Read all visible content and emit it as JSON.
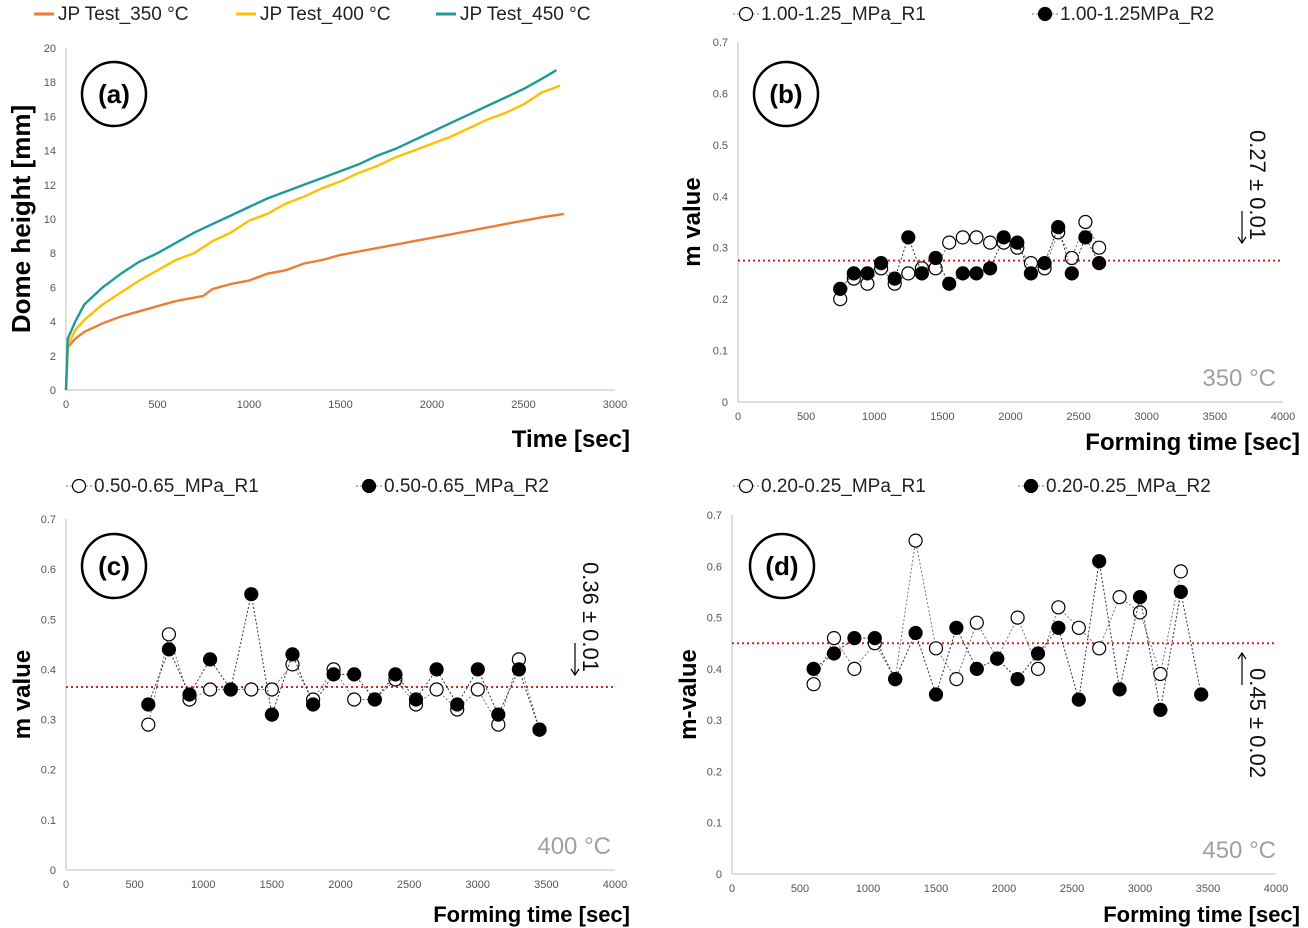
{
  "chart_data": [
    {
      "id": "a",
      "type": "line",
      "panel_label": "(a)",
      "xlabel": "Time [sec]",
      "ylabel": "Dome height [mm]",
      "xlim": [
        0,
        3000
      ],
      "ylim": [
        0,
        20
      ],
      "xticks": [
        0,
        500,
        1000,
        1500,
        2000,
        2500,
        3000
      ],
      "yticks": [
        0,
        2,
        4,
        6,
        8,
        10,
        12,
        14,
        16,
        18,
        20
      ],
      "legend_position": "top",
      "series": [
        {
          "name": "JP Test_350 °C",
          "color": "#ed7d31",
          "points": [
            [
              0,
              0
            ],
            [
              10,
              2.5
            ],
            [
              50,
              3.0
            ],
            [
              100,
              3.4
            ],
            [
              200,
              3.9
            ],
            [
              300,
              4.3
            ],
            [
              400,
              4.6
            ],
            [
              500,
              4.9
            ],
            [
              600,
              5.2
            ],
            [
              750,
              5.5
            ],
            [
              800,
              5.9
            ],
            [
              900,
              6.2
            ],
            [
              1000,
              6.4
            ],
            [
              1100,
              6.8
            ],
            [
              1200,
              7.0
            ],
            [
              1300,
              7.4
            ],
            [
              1400,
              7.6
            ],
            [
              1500,
              7.9
            ],
            [
              1600,
              8.1
            ],
            [
              1700,
              8.3
            ],
            [
              1800,
              8.5
            ],
            [
              1900,
              8.7
            ],
            [
              2000,
              8.9
            ],
            [
              2100,
              9.1
            ],
            [
              2200,
              9.3
            ],
            [
              2300,
              9.5
            ],
            [
              2400,
              9.7
            ],
            [
              2500,
              9.9
            ],
            [
              2600,
              10.1
            ],
            [
              2720,
              10.3
            ]
          ]
        },
        {
          "name": "JP Test_400 °C",
          "color": "#ffc000",
          "points": [
            [
              0,
              0
            ],
            [
              10,
              2.6
            ],
            [
              50,
              3.5
            ],
            [
              100,
              4.1
            ],
            [
              200,
              5.0
            ],
            [
              300,
              5.7
            ],
            [
              400,
              6.4
            ],
            [
              500,
              7.0
            ],
            [
              600,
              7.6
            ],
            [
              700,
              8.0
            ],
            [
              800,
              8.7
            ],
            [
              900,
              9.2
            ],
            [
              1000,
              9.9
            ],
            [
              1100,
              10.3
            ],
            [
              1200,
              10.9
            ],
            [
              1300,
              11.3
            ],
            [
              1400,
              11.8
            ],
            [
              1500,
              12.2
            ],
            [
              1600,
              12.7
            ],
            [
              1700,
              13.1
            ],
            [
              1800,
              13.6
            ],
            [
              1900,
              14.0
            ],
            [
              2000,
              14.4
            ],
            [
              2100,
              14.8
            ],
            [
              2200,
              15.3
            ],
            [
              2300,
              15.8
            ],
            [
              2400,
              16.2
            ],
            [
              2500,
              16.7
            ],
            [
              2600,
              17.4
            ],
            [
              2700,
              17.8
            ]
          ]
        },
        {
          "name": "JP Test_450 °C",
          "color": "#1f9a9a",
          "points": [
            [
              0,
              0
            ],
            [
              10,
              3.0
            ],
            [
              50,
              4.0
            ],
            [
              100,
              5.0
            ],
            [
              200,
              6.0
            ],
            [
              300,
              6.8
            ],
            [
              400,
              7.5
            ],
            [
              500,
              8.0
            ],
            [
              600,
              8.6
            ],
            [
              700,
              9.2
            ],
            [
              800,
              9.7
            ],
            [
              900,
              10.2
            ],
            [
              1000,
              10.7
            ],
            [
              1100,
              11.2
            ],
            [
              1200,
              11.6
            ],
            [
              1300,
              12.0
            ],
            [
              1400,
              12.4
            ],
            [
              1500,
              12.8
            ],
            [
              1600,
              13.2
            ],
            [
              1700,
              13.7
            ],
            [
              1800,
              14.1
            ],
            [
              1900,
              14.6
            ],
            [
              2000,
              15.1
            ],
            [
              2100,
              15.6
            ],
            [
              2200,
              16.1
            ],
            [
              2300,
              16.6
            ],
            [
              2400,
              17.1
            ],
            [
              2500,
              17.6
            ],
            [
              2600,
              18.2
            ],
            [
              2680,
              18.7
            ]
          ]
        }
      ]
    },
    {
      "id": "b",
      "type": "scatter",
      "panel_label": "(b)",
      "xlabel": "Forming time [sec]",
      "ylabel": "m value",
      "xlim": [
        0,
        4000
      ],
      "ylim": [
        0,
        0.7
      ],
      "xticks": [
        0,
        500,
        1000,
        1500,
        2000,
        2500,
        3000,
        3500,
        4000
      ],
      "yticks": [
        0,
        0.1,
        0.2,
        0.3,
        0.4,
        0.5,
        0.6,
        0.7
      ],
      "reference_line": 0.275,
      "annotation": "0.27 ± 0.01",
      "annotation_arrow": "down",
      "temperature": "350 °C",
      "legend_position": "top",
      "series": [
        {
          "name": "1.00-1.25_MPa_R1",
          "marker": "open",
          "x": [
            750,
            850,
            950,
            1050,
            1150,
            1250,
            1350,
            1450,
            1550,
            1650,
            1750,
            1850,
            1950,
            2050,
            2150,
            2250,
            2350,
            2450,
            2550,
            2650
          ],
          "y": [
            0.2,
            0.24,
            0.23,
            0.26,
            0.23,
            0.25,
            0.26,
            0.26,
            0.31,
            0.32,
            0.32,
            0.31,
            0.31,
            0.3,
            0.27,
            0.26,
            0.33,
            0.28,
            0.35,
            0.3
          ]
        },
        {
          "name": "1.00-1.25MPa_R2",
          "marker": "filled",
          "x": [
            750,
            850,
            950,
            1050,
            1150,
            1250,
            1350,
            1450,
            1550,
            1650,
            1750,
            1850,
            1950,
            2050,
            2150,
            2250,
            2350,
            2450,
            2550,
            2650
          ],
          "y": [
            0.22,
            0.25,
            0.25,
            0.27,
            0.24,
            0.32,
            0.25,
            0.28,
            0.23,
            0.25,
            0.25,
            0.26,
            0.32,
            0.31,
            0.25,
            0.27,
            0.34,
            0.25,
            0.32,
            0.27
          ]
        }
      ]
    },
    {
      "id": "c",
      "type": "scatter",
      "panel_label": "(c)",
      "xlabel": "Forming time [sec]",
      "ylabel": "m value",
      "xlim": [
        0,
        4000
      ],
      "ylim": [
        0,
        0.7
      ],
      "xticks": [
        0,
        500,
        1000,
        1500,
        2000,
        2500,
        3000,
        3500,
        4000
      ],
      "yticks": [
        0,
        0.1,
        0.2,
        0.3,
        0.4,
        0.5,
        0.6,
        0.7
      ],
      "reference_line": 0.365,
      "annotation": "0.36 ± 0.01",
      "annotation_arrow": "down",
      "temperature": "400 °C",
      "legend_position": "top",
      "series": [
        {
          "name": "0.50-0.65_MPa_R1",
          "marker": "open",
          "x": [
            600,
            750,
            900,
            1050,
            1200,
            1350,
            1500,
            1650,
            1800,
            1950,
            2100,
            2250,
            2400,
            2550,
            2700,
            2850,
            3000,
            3150,
            3300,
            3450
          ],
          "y": [
            0.29,
            0.47,
            0.34,
            0.36,
            0.36,
            0.36,
            0.36,
            0.41,
            0.34,
            0.4,
            0.34,
            0.34,
            0.38,
            0.33,
            0.36,
            0.32,
            0.36,
            0.29,
            0.42,
            0.28
          ]
        },
        {
          "name": "0.50-0.65_MPa_R2",
          "marker": "filled",
          "x": [
            600,
            750,
            900,
            1050,
            1200,
            1350,
            1500,
            1650,
            1800,
            1950,
            2100,
            2250,
            2400,
            2550,
            2700,
            2850,
            3000,
            3150,
            3300,
            3450
          ],
          "y": [
            0.33,
            0.44,
            0.35,
            0.42,
            0.36,
            0.55,
            0.31,
            0.43,
            0.33,
            0.39,
            0.39,
            0.34,
            0.39,
            0.34,
            0.4,
            0.33,
            0.4,
            0.31,
            0.4,
            0.28
          ]
        }
      ]
    },
    {
      "id": "d",
      "type": "scatter",
      "panel_label": "(d)",
      "xlabel": "Forming time [sec]",
      "ylabel": "m-value",
      "xlim": [
        0,
        4000
      ],
      "ylim": [
        0,
        0.7
      ],
      "xticks": [
        0,
        500,
        1000,
        1500,
        2000,
        2500,
        3000,
        3500,
        4000
      ],
      "yticks": [
        0,
        0.1,
        0.2,
        0.3,
        0.4,
        0.5,
        0.6,
        0.7
      ],
      "reference_line": 0.45,
      "annotation": "0.45 ± 0.02",
      "annotation_arrow": "up",
      "temperature": "450 °C",
      "legend_position": "top",
      "series": [
        {
          "name": "0.20-0.25_MPa_R1",
          "marker": "open",
          "x": [
            600,
            750,
            900,
            1050,
            1200,
            1350,
            1500,
            1650,
            1800,
            1950,
            2100,
            2250,
            2400,
            2550,
            2700,
            2850,
            3000,
            3150,
            3300
          ],
          "y": [
            0.37,
            0.46,
            0.4,
            0.45,
            0.38,
            0.65,
            0.44,
            0.38,
            0.49,
            0.42,
            0.5,
            0.4,
            0.52,
            0.48,
            0.44,
            0.54,
            0.51,
            0.39,
            0.59
          ]
        },
        {
          "name": "0.20-0.25_MPa_R2",
          "marker": "filled",
          "x": [
            600,
            750,
            900,
            1050,
            1200,
            1350,
            1500,
            1650,
            1800,
            1950,
            2100,
            2250,
            2400,
            2550,
            2700,
            2850,
            3000,
            3150,
            3300,
            3450
          ],
          "y": [
            0.4,
            0.43,
            0.46,
            0.46,
            0.38,
            0.47,
            0.35,
            0.48,
            0.4,
            0.42,
            0.38,
            0.43,
            0.48,
            0.34,
            0.61,
            0.36,
            0.54,
            0.32,
            0.55,
            0.35
          ]
        }
      ]
    }
  ]
}
